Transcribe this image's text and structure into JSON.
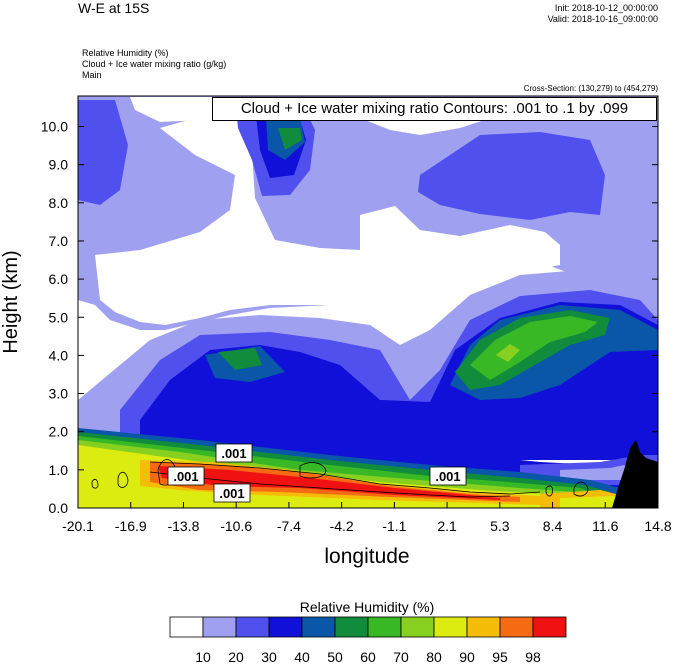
{
  "header": {
    "title": "W-E at 15S",
    "init": "Init: 2018-10-12_00:00:00",
    "valid": "Valid: 2018-10-16_09:00:00"
  },
  "fields": [
    "Relative Humidity   (%)",
    "Cloud + Ice water mixing ratio   (g/kg)",
    "Main"
  ],
  "cross_section": "Cross-Section: (130,279) to (454,279)",
  "contour_label": "Cloud + Ice water mixing ratio Contours: .001 to .1 by .099",
  "chart_data": {
    "type": "heatmap",
    "xlabel": "longitude",
    "ylabel": "Height (km)",
    "x_ticks": [
      "-20.1",
      "-16.9",
      "-13.8",
      "-10.6",
      "-7.4",
      "-4.2",
      "-1.1",
      "2.1",
      "5.3",
      "8.4",
      "11.6",
      "14.8"
    ],
    "y_ticks": [
      "0.0",
      "1.0",
      "2.0",
      "3.0",
      "4.0",
      "5.0",
      "6.0",
      "7.0",
      "8.0",
      "9.0",
      "10.0"
    ],
    "xlim": [
      -20.1,
      14.8
    ],
    "ylim": [
      0,
      10.8
    ],
    "contour_labels": [
      ".001",
      ".001",
      ".001",
      ".001"
    ],
    "colorbar": {
      "title": "Relative Humidity  (%)",
      "labels": [
        "10",
        "20",
        "30",
        "40",
        "50",
        "60",
        "70",
        "80",
        "90",
        "95",
        "98"
      ],
      "colors": [
        "#ffffff",
        "#a0a0f0",
        "#5050ee",
        "#1010d8",
        "#0a56a8",
        "#118c3c",
        "#38b824",
        "#88d020",
        "#dcec10",
        "#f5bc08",
        "#f56a12",
        "#f01212"
      ]
    },
    "terrain_color": "#000000"
  }
}
